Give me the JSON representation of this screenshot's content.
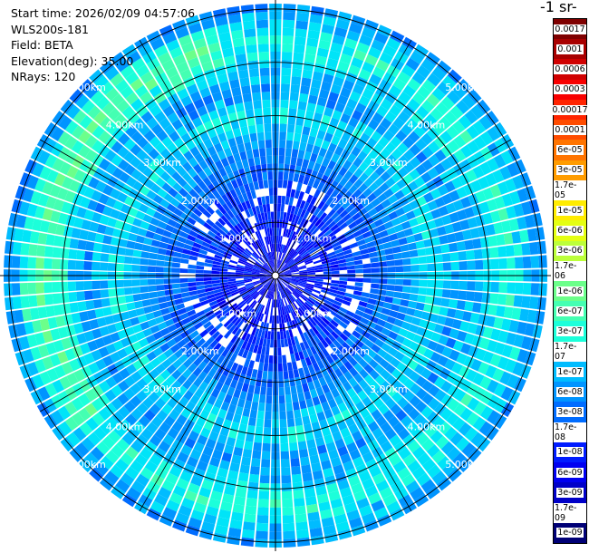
{
  "info": {
    "start_time": "Start time: 2026/02/09 04:57:06",
    "station": "WLS200s-181",
    "field": "Field: BETA",
    "elevation": "Elevation(deg): 35.00",
    "nrays": "NRays: 120"
  },
  "chart_data": {
    "type": "heatmap",
    "projection": "polar (PPI scan)",
    "field": "BETA",
    "units_label_visible": "-1 sr-",
    "elevation_deg": 35.0,
    "n_rays": 120,
    "range_rings_km": [
      1,
      2,
      3,
      4,
      5
    ],
    "range_labels": [
      "1.00km",
      "2.00km",
      "3.00km",
      "4.00km",
      "5.00km"
    ],
    "max_range_km": 5.1,
    "radial_profile": [
      {
        "range_km": 0.0,
        "value": "6e-09"
      },
      {
        "range_km": 1.0,
        "value": "1e-08"
      },
      {
        "range_km": 2.0,
        "value": "3e-08"
      },
      {
        "range_km": 3.0,
        "value": "1.7e-07"
      },
      {
        "range_km": 3.5,
        "value": "6e-08"
      },
      {
        "range_km": 4.4,
        "value": "3e-07"
      },
      {
        "range_km": 5.0,
        "value": "6e-08"
      }
    ],
    "colorbar": {
      "scale": "log",
      "ticks": [
        "0.0017",
        "0.001",
        "0.0006",
        "0.0003",
        "0.00017",
        "0.0001",
        "6e-05",
        "3e-05",
        "1.7e-05",
        "1e-05",
        "6e-06",
        "3e-06",
        "1.7e-06",
        "1e-06",
        "6e-07",
        "3e-07",
        "1.7e-07",
        "1e-07",
        "6e-08",
        "3e-08",
        "1.7e-08",
        "1e-08",
        "6e-09",
        "3e-09",
        "1.7e-09",
        "1e-09"
      ],
      "colors": [
        "#7f0000",
        "#a80000",
        "#d00000",
        "#f80000",
        "#ff2400",
        "#ff4c00",
        "#ff7400",
        "#ff9c00",
        "#ffc400",
        "#ffec00",
        "#e4ff12",
        "#bcff3a",
        "#94ff62",
        "#6cff8a",
        "#44ffb2",
        "#1cffda",
        "#00e4f8",
        "#00bcff",
        "#0094ff",
        "#006cff",
        "#0044ff",
        "#001cff",
        "#0000f1",
        "#0000c8",
        "#00009f",
        "#000076"
      ]
    },
    "grid": true
  }
}
